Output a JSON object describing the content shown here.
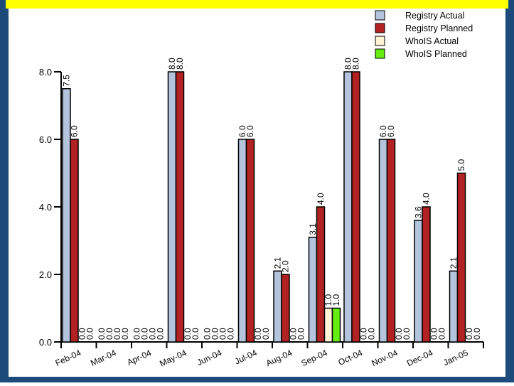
{
  "colors": {
    "outer_border": "#1c4a7a",
    "title_band": "#ffff00",
    "plot_bg": "#ffffff",
    "axis": "#000000"
  },
  "chart_data": {
    "type": "bar",
    "categories": [
      "Feb-04",
      "Mar-04",
      "Apr-04",
      "May-04",
      "Jun-04",
      "Jul-04",
      "Aug-04",
      "Sep-04",
      "Oct-04",
      "Nov-04",
      "Dec-04",
      "Jan-05"
    ],
    "ylim": [
      0,
      8.0
    ],
    "yticks": [
      0.0,
      2.0,
      4.0,
      6.0,
      8.0
    ],
    "ytick_labels": [
      "0.0",
      "2.0",
      "4.0",
      "6.0",
      "8.0"
    ],
    "legend_position": "top-right",
    "grid": false,
    "series": [
      {
        "name": "Registry Actual",
        "color": "#b3c4dc",
        "values": [
          7.5,
          0.0,
          0.0,
          8.0,
          0.0,
          6.0,
          2.1,
          3.1,
          8.0,
          6.0,
          3.6,
          2.1
        ],
        "labels": [
          "7.5",
          "0.0",
          "0.0",
          "8.0",
          "0.0",
          "6.0",
          "2.1",
          "3.1",
          "8.0",
          "6.0",
          "3.6",
          "2.1"
        ]
      },
      {
        "name": "Registry Planned",
        "color": "#b22222",
        "values": [
          6.0,
          0.0,
          0.0,
          8.0,
          0.0,
          6.0,
          2.0,
          4.0,
          8.0,
          6.0,
          4.0,
          5.0
        ],
        "labels": [
          "6.0",
          "0.0",
          "0.0",
          "8.0",
          "0.0",
          "6.0",
          "2.0",
          "4.0",
          "8.0",
          "6.0",
          "4.0",
          "5.0"
        ]
      },
      {
        "name": "WhoIS Actual",
        "color": "#fff5d6",
        "values": [
          0.0,
          0.0,
          0.0,
          0.0,
          0.0,
          0.0,
          0.0,
          1.0,
          0.0,
          0.0,
          0.0,
          0.0
        ],
        "labels": [
          "0.0",
          "0.0",
          "0.0",
          "0.0",
          "0.0",
          "0.0",
          "0.0",
          "1.0",
          "0.0",
          "0.0",
          "0.0",
          "0.0"
        ]
      },
      {
        "name": "WhoIS Planned",
        "color": "#66ee11",
        "values": [
          0.0,
          0.0,
          0.0,
          0.0,
          0.0,
          0.0,
          0.0,
          1.0,
          0.0,
          0.0,
          0.0,
          0.0
        ],
        "labels": [
          "0.0",
          "0.0",
          "0.0",
          "0.0",
          "0.0",
          "0.0",
          "0.0",
          "1.0",
          "0.0",
          "0.0",
          "0.0",
          "0.0"
        ]
      }
    ]
  }
}
